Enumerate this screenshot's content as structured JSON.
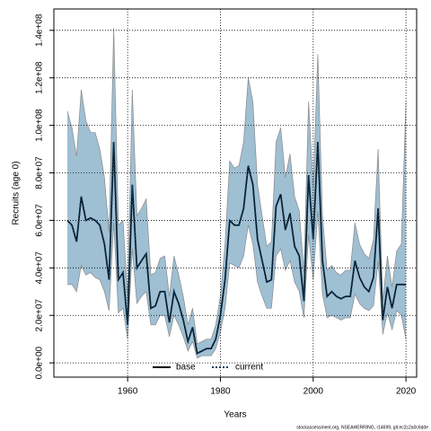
{
  "chart_data": {
    "type": "line",
    "xlabel": "Years",
    "ylabel": "Recruits (age 0)",
    "footnote": "stockassessment.org, NSEAHERRING, r14699, git:ec2c2a0c6dde",
    "x": [
      1947,
      1948,
      1949,
      1950,
      1951,
      1952,
      1953,
      1954,
      1955,
      1956,
      1957,
      1958,
      1959,
      1960,
      1961,
      1962,
      1963,
      1964,
      1965,
      1966,
      1967,
      1968,
      1969,
      1970,
      1971,
      1972,
      1973,
      1974,
      1975,
      1976,
      1977,
      1978,
      1979,
      1980,
      1981,
      1982,
      1983,
      1984,
      1985,
      1986,
      1987,
      1988,
      1989,
      1990,
      1991,
      1992,
      1993,
      1994,
      1995,
      1996,
      1997,
      1998,
      1999,
      2000,
      2001,
      2002,
      2003,
      2004,
      2005,
      2006,
      2007,
      2008,
      2009,
      2010,
      2011,
      2012,
      2013,
      2014,
      2015,
      2016,
      2017,
      2018,
      2019,
      2020
    ],
    "series": [
      {
        "name": "base",
        "color": "#000000",
        "dash": false,
        "values": [
          60000000.0,
          58000000.0,
          51000000.0,
          70000000.0,
          60000000.0,
          61000000.0,
          60000000.0,
          58000000.0,
          50000000.0,
          35000000.0,
          93000000.0,
          35000000.0,
          38000000.0,
          16000000.0,
          75000000.0,
          40000000.0,
          43000000.0,
          46000000.0,
          23000000.0,
          24000000.0,
          30000000.0,
          30000000.0,
          17000000.0,
          30000000.0,
          25000000.0,
          18000000.0,
          9000000.0,
          15000000.0,
          4000000.0,
          5000000.0,
          6000000.0,
          6000000.0,
          10000000.0,
          20000000.0,
          35000000.0,
          60000000.0,
          58000000.0,
          58000000.0,
          65000000.0,
          83000000.0,
          75000000.0,
          52000000.0,
          43000000.0,
          34000000.0,
          35000000.0,
          66000000.0,
          71000000.0,
          56000000.0,
          63000000.0,
          49000000.0,
          45000000.0,
          26000000.0,
          79000000.0,
          52000000.0,
          93000000.0,
          43000000.0,
          28000000.0,
          30000000.0,
          28000000.0,
          27000000.0,
          28000000.0,
          28000000.0,
          43000000.0,
          36000000.0,
          32000000.0,
          30000000.0,
          36000000.0,
          65000000.0,
          18000000.0,
          32000000.0,
          23000000.0,
          33000000.0,
          33000000.0,
          33000000.0
        ]
      },
      {
        "name": "current",
        "color": "#0d3b5e",
        "dash": true,
        "values": [
          60000000.0,
          58000000.0,
          51000000.0,
          70000000.0,
          60000000.0,
          61000000.0,
          60000000.0,
          58000000.0,
          50000000.0,
          35000000.0,
          93000000.0,
          35000000.0,
          38000000.0,
          16000000.0,
          75000000.0,
          40000000.0,
          43000000.0,
          46000000.0,
          23000000.0,
          24000000.0,
          30000000.0,
          30000000.0,
          17000000.0,
          30000000.0,
          25000000.0,
          18000000.0,
          9000000.0,
          15000000.0,
          4000000.0,
          5000000.0,
          6000000.0,
          6000000.0,
          10000000.0,
          20000000.0,
          35000000.0,
          60000000.0,
          58000000.0,
          58000000.0,
          65000000.0,
          83000000.0,
          75000000.0,
          52000000.0,
          43000000.0,
          34000000.0,
          35000000.0,
          66000000.0,
          71000000.0,
          56000000.0,
          63000000.0,
          49000000.0,
          45000000.0,
          26000000.0,
          79000000.0,
          52000000.0,
          93000000.0,
          43000000.0,
          28000000.0,
          30000000.0,
          28000000.0,
          27000000.0,
          28000000.0,
          28000000.0,
          43000000.0,
          36000000.0,
          32000000.0,
          30000000.0,
          36000000.0,
          65000000.0,
          18000000.0,
          32000000.0,
          23000000.0,
          33000000.0,
          33000000.0,
          33000000.0
        ]
      }
    ],
    "band": {
      "color": "#9fbfd3",
      "edge": "#8a8a8a",
      "upper": [
        106000000.0,
        99000000.0,
        87000000.0,
        115000000.0,
        102000000.0,
        97000000.0,
        97000000.0,
        90000000.0,
        78000000.0,
        55000000.0,
        141000000.0,
        58000000.0,
        60000000.0,
        28000000.0,
        115000000.0,
        62000000.0,
        65000000.0,
        69000000.0,
        37000000.0,
        38000000.0,
        44000000.0,
        45000000.0,
        28000000.0,
        45000000.0,
        37000000.0,
        28000000.0,
        16000000.0,
        23000000.0,
        8000000.0,
        9000000.0,
        10000000.0,
        10000000.0,
        16000000.0,
        28000000.0,
        50000000.0,
        85000000.0,
        82000000.0,
        83000000.0,
        93000000.0,
        120000000.0,
        110000000.0,
        75000000.0,
        62000000.0,
        49000000.0,
        51000000.0,
        93000000.0,
        99000000.0,
        78000000.0,
        88000000.0,
        70000000.0,
        64000000.0,
        38000000.0,
        110000000.0,
        74000000.0,
        130000000.0,
        62000000.0,
        39000000.0,
        41000000.0,
        38000000.0,
        37000000.0,
        39000000.0,
        39000000.0,
        59000000.0,
        50000000.0,
        46000000.0,
        44000000.0,
        52000000.0,
        90000000.0,
        26000000.0,
        45000000.0,
        32000000.0,
        47000000.0,
        50000000.0,
        110000000.0
      ],
      "lower": [
        33000000.0,
        33000000.0,
        30000000.0,
        41000000.0,
        37000000.0,
        38000000.0,
        36000000.0,
        35000000.0,
        30000000.0,
        22000000.0,
        59000000.0,
        21000000.0,
        23000000.0,
        10000000.0,
        48000000.0,
        25000000.0,
        28000000.0,
        30000000.0,
        16000000.0,
        16000000.0,
        20000000.0,
        20000000.0,
        11000000.0,
        20000000.0,
        16000000.0,
        11000000.0,
        5000000.0,
        9000000.0,
        2000000.0,
        3000000.0,
        3000000.0,
        3000000.0,
        6000000.0,
        13000000.0,
        23000000.0,
        42000000.0,
        41000000.0,
        40000000.0,
        45000000.0,
        58000000.0,
        50000000.0,
        34000000.0,
        28000000.0,
        23000000.0,
        23000000.0,
        45000000.0,
        48000000.0,
        39000000.0,
        43000000.0,
        34000000.0,
        30000000.0,
        19000000.0,
        54000000.0,
        35000000.0,
        64000000.0,
        29000000.0,
        19000000.0,
        20000000.0,
        19000000.0,
        18000000.0,
        19000000.0,
        19000000.0,
        29000000.0,
        25000000.0,
        23000000.0,
        22000000.0,
        24000000.0,
        43000000.0,
        12000000.0,
        21000000.0,
        14000000.0,
        22000000.0,
        20000000.0,
        10000000.0
      ]
    },
    "xlim": [
      1944.1,
      2022.3
    ],
    "xticks": [
      1960,
      1980,
      2000,
      2020
    ],
    "ylim": [
      -6000000,
      149000000
    ],
    "yticks": [
      {
        "value": 0,
        "label": "0.0e+00"
      },
      {
        "value": 20000000,
        "label": "2.0e+07"
      },
      {
        "value": 40000000,
        "label": "4.0e+07"
      },
      {
        "value": 60000000,
        "label": "6.0e+07"
      },
      {
        "value": 80000000,
        "label": "8.0e+07"
      },
      {
        "value": 100000000,
        "label": "1.0e+08"
      },
      {
        "value": 120000000,
        "label": "1.2e+08"
      },
      {
        "value": 140000000,
        "label": "1.4e+08"
      }
    ],
    "grid": true,
    "legend": "bottom"
  }
}
